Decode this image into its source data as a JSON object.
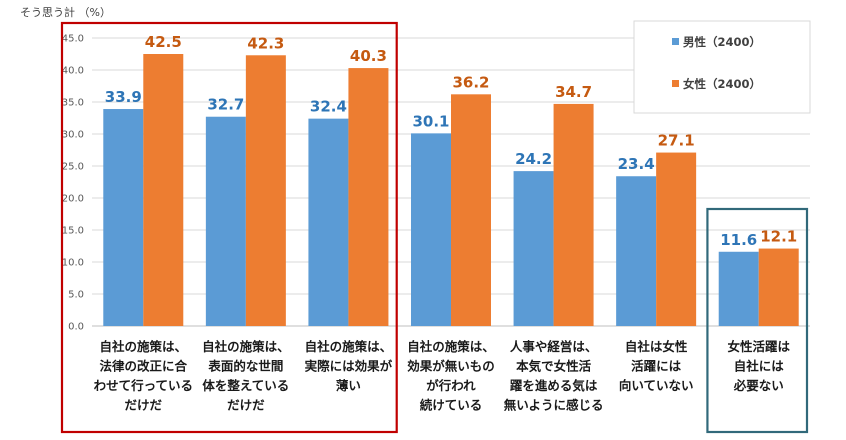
{
  "chart_data": {
    "type": "bar",
    "yunit_label": "そう思う計 （%）",
    "ylim": [
      0,
      45
    ],
    "yticks": [
      "0.0",
      "5.0",
      "10.0",
      "15.0",
      "20.0",
      "25.0",
      "30.0",
      "35.0",
      "40.0",
      "45.0"
    ],
    "grid": true,
    "legend_position": "top-right",
    "categories": [
      [
        "自社の施策は、",
        "法律の改正に合",
        "わせて行っている",
        "だけだ"
      ],
      [
        "自社の施策は、",
        "表面的な世間",
        "体を整えている",
        "だけだ"
      ],
      [
        "自社の施策は、",
        "実際には効果が",
        "薄い"
      ],
      [
        "自社の施策は、",
        "効果が無いもの",
        "が行われ",
        "続けている"
      ],
      [
        "人事や経営は、",
        "本気で女性活",
        "躍を進める気は",
        "無いように感じる"
      ],
      [
        "自社は女性",
        "活躍には",
        "向いていない"
      ],
      [
        "女性活躍は",
        "自社には",
        "必要ない"
      ]
    ],
    "series": [
      {
        "name": "男性（2400）",
        "color": "#5b9bd5",
        "label_color": "#2e75b6",
        "values": [
          33.9,
          32.7,
          32.4,
          30.1,
          24.2,
          23.4,
          11.6
        ]
      },
      {
        "name": "女性（2400）",
        "color": "#ed7d31",
        "label_color": "#c55a11",
        "values": [
          42.5,
          42.3,
          40.3,
          36.2,
          34.7,
          27.1,
          12.1
        ]
      }
    ],
    "highlight_groups": [
      {
        "from": 0,
        "to": 2,
        "color": "#c00000"
      },
      {
        "from": 6,
        "to": 6,
        "color": "#31697a"
      }
    ]
  }
}
